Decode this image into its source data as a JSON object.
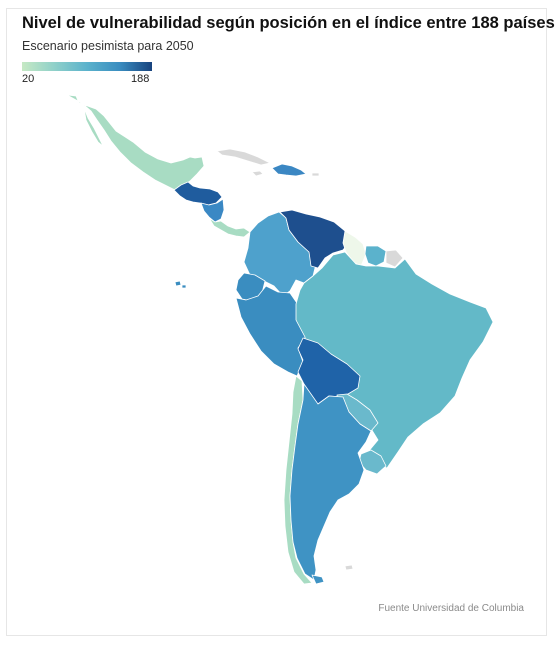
{
  "header": {
    "title": "Nivel de vulnerabilidad según posición en el índice entre 188 países",
    "subtitle": "Escenario pesimista para 2050"
  },
  "legend": {
    "min_label": "20",
    "max_label": "188",
    "min_value": 20,
    "max_value": 188,
    "gradient": [
      "#c6e9c4",
      "#8fd0c9",
      "#5bb2cc",
      "#3a8dc0",
      "#1f5c9e",
      "#17437e"
    ]
  },
  "map": {
    "region": "Latin America",
    "fill_colors": {
      "mexico": "#a8dcc3",
      "guatemala_honduras": "#1f5c9e",
      "nicaragua": "#3a88c4",
      "costa_rica_panama": "#a8dcc3",
      "cuba": "#d9d9d9",
      "hispaniola": "#3b87c3",
      "venezuela": "#1e4f8e",
      "colombia": "#4ea1cc",
      "guyana": "#eef7ea",
      "suriname": "#5bb2cc",
      "french_guiana": "#d9d9d9",
      "ecuador": "#3a8dc0",
      "peru": "#3a8dc0",
      "brazil": "#63b9c8",
      "bolivia": "#1f63a8",
      "paraguay": "#6ab9cc",
      "uruguay": "#6ab9cc",
      "chile": "#a8dcc3",
      "argentina": "#3f93c4",
      "no_data": "#d9d9d9"
    }
  },
  "footer": {
    "source": "Fuente Universidad de Columbia"
  }
}
